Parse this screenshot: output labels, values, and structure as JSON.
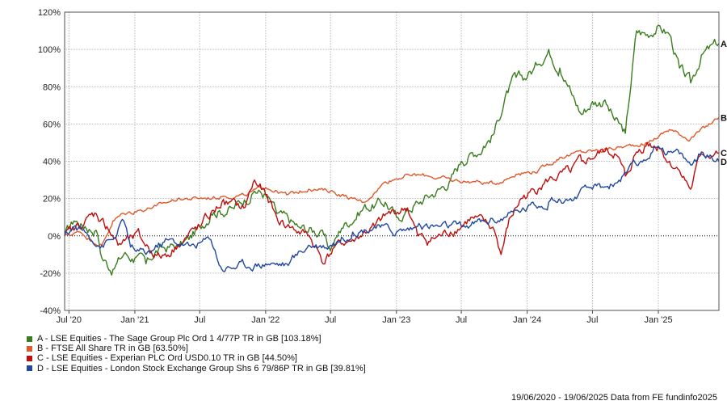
{
  "chart_data": {
    "type": "line",
    "x_ticks": [
      "Jul '20",
      "Jan '21",
      "Jul",
      "Jan '22",
      "Jul",
      "Jan '23",
      "Jul",
      "Jan '24",
      "Jul",
      "Jan '25"
    ],
    "x_tick_dates": [
      "2020-07-01",
      "2021-01-01",
      "2021-07-01",
      "2022-01-01",
      "2022-07-01",
      "2023-01-01",
      "2023-07-01",
      "2024-01-01",
      "2024-07-01",
      "2025-01-01"
    ],
    "xlim": [
      "2020-06-19",
      "2025-06-19"
    ],
    "ylim": [
      -40,
      120
    ],
    "y_ticks": [
      "-40%",
      "-20%",
      "0%",
      "20%",
      "40%",
      "60%",
      "80%",
      "100%",
      "120%"
    ],
    "y_tick_values": [
      -40,
      -20,
      0,
      20,
      40,
      60,
      80,
      100,
      120
    ],
    "grid": true,
    "legend_position": "bottom-left",
    "series": [
      {
        "name": "A - LSE Equities - The Sage Group Plc Ord 1 4/77P TR in GB [103.18%]",
        "end_label": "A",
        "color": "#3a7d1e",
        "points": [
          [
            "2020-06-19",
            0
          ],
          [
            "2020-07-15",
            8
          ],
          [
            "2020-08-15",
            5
          ],
          [
            "2020-09-15",
            3
          ],
          [
            "2020-10-01",
            -12
          ],
          [
            "2020-11-01",
            -18
          ],
          [
            "2020-12-01",
            -10
          ],
          [
            "2021-01-01",
            -12
          ],
          [
            "2021-02-01",
            -15
          ],
          [
            "2021-03-01",
            -8
          ],
          [
            "2021-05-01",
            -5
          ],
          [
            "2021-06-01",
            -2
          ],
          [
            "2021-07-01",
            5
          ],
          [
            "2021-08-01",
            12
          ],
          [
            "2021-10-01",
            15
          ],
          [
            "2021-12-01",
            24
          ],
          [
            "2022-01-01",
            22
          ],
          [
            "2022-02-01",
            12
          ],
          [
            "2022-04-01",
            5
          ],
          [
            "2022-06-01",
            2
          ],
          [
            "2022-07-01",
            -8
          ],
          [
            "2022-08-01",
            4
          ],
          [
            "2022-10-01",
            15
          ],
          [
            "2022-12-01",
            18
          ],
          [
            "2023-01-01",
            10
          ],
          [
            "2023-03-01",
            18
          ],
          [
            "2023-05-01",
            25
          ],
          [
            "2023-06-01",
            30
          ],
          [
            "2023-07-01",
            40
          ],
          [
            "2023-09-01",
            48
          ],
          [
            "2023-10-01",
            55
          ],
          [
            "2023-11-01",
            75
          ],
          [
            "2023-12-01",
            85
          ],
          [
            "2024-01-01",
            85
          ],
          [
            "2024-02-01",
            92
          ],
          [
            "2024-03-01",
            100
          ],
          [
            "2024-04-01",
            90
          ],
          [
            "2024-05-01",
            78
          ],
          [
            "2024-06-01",
            65
          ],
          [
            "2024-07-01",
            72
          ],
          [
            "2024-08-01",
            72
          ],
          [
            "2024-09-01",
            62
          ],
          [
            "2024-10-01",
            55
          ],
          [
            "2024-11-01",
            110
          ],
          [
            "2024-12-01",
            108
          ],
          [
            "2025-01-01",
            113
          ],
          [
            "2025-02-01",
            108
          ],
          [
            "2025-03-01",
            90
          ],
          [
            "2025-04-01",
            82
          ],
          [
            "2025-05-01",
            97
          ],
          [
            "2025-06-19",
            103.18
          ]
        ]
      },
      {
        "name": "B - FTSE All Share TR in GB [63.50%]",
        "end_label": "B",
        "color": "#e0592a",
        "points": [
          [
            "2020-06-19",
            0
          ],
          [
            "2020-08-01",
            2
          ],
          [
            "2020-09-01",
            -2
          ],
          [
            "2020-10-01",
            -5
          ],
          [
            "2020-11-01",
            8
          ],
          [
            "2020-12-01",
            12
          ],
          [
            "2021-01-01",
            13
          ],
          [
            "2021-03-01",
            16
          ],
          [
            "2021-05-01",
            20
          ],
          [
            "2021-07-01",
            20
          ],
          [
            "2021-09-01",
            21
          ],
          [
            "2021-11-01",
            22
          ],
          [
            "2022-01-01",
            26
          ],
          [
            "2022-03-01",
            22
          ],
          [
            "2022-05-01",
            25
          ],
          [
            "2022-07-01",
            24
          ],
          [
            "2022-09-01",
            20
          ],
          [
            "2022-10-01",
            18
          ],
          [
            "2022-12-01",
            29
          ],
          [
            "2023-02-01",
            33
          ],
          [
            "2023-04-01",
            32
          ],
          [
            "2023-06-01",
            30
          ],
          [
            "2023-08-01",
            29
          ],
          [
            "2023-10-01",
            28
          ],
          [
            "2023-12-01",
            33
          ],
          [
            "2024-02-01",
            35
          ],
          [
            "2024-04-01",
            42
          ],
          [
            "2024-06-01",
            45
          ],
          [
            "2024-08-01",
            46
          ],
          [
            "2024-10-01",
            48
          ],
          [
            "2024-12-01",
            50
          ],
          [
            "2025-02-01",
            57
          ],
          [
            "2025-04-01",
            52
          ],
          [
            "2025-06-19",
            63.5
          ]
        ]
      },
      {
        "name": "C - LSE Equities - Experian PLC Ord USD0.10 TR in GB [44.50%]",
        "end_label": "C",
        "color": "#c00d0d",
        "points": [
          [
            "2020-06-19",
            0
          ],
          [
            "2020-07-15",
            3
          ],
          [
            "2020-08-15",
            8
          ],
          [
            "2020-09-15",
            12
          ],
          [
            "2020-10-15",
            5
          ],
          [
            "2020-11-15",
            -5
          ],
          [
            "2020-12-15",
            -2
          ],
          [
            "2021-01-15",
            0
          ],
          [
            "2021-02-15",
            -8
          ],
          [
            "2021-03-15",
            -12
          ],
          [
            "2021-05-01",
            -5
          ],
          [
            "2021-07-01",
            5
          ],
          [
            "2021-09-01",
            18
          ],
          [
            "2021-11-01",
            15
          ],
          [
            "2021-12-01",
            30
          ],
          [
            "2022-01-01",
            22
          ],
          [
            "2022-02-01",
            10
          ],
          [
            "2022-03-01",
            5
          ],
          [
            "2022-05-01",
            0
          ],
          [
            "2022-06-15",
            -15
          ],
          [
            "2022-07-15",
            -5
          ],
          [
            "2022-09-01",
            -2
          ],
          [
            "2022-11-01",
            5
          ],
          [
            "2022-12-15",
            12
          ],
          [
            "2023-02-01",
            15
          ],
          [
            "2023-03-01",
            0
          ],
          [
            "2023-04-01",
            -3
          ],
          [
            "2023-06-01",
            2
          ],
          [
            "2023-08-01",
            10
          ],
          [
            "2023-10-01",
            3
          ],
          [
            "2023-10-20",
            -10
          ],
          [
            "2023-11-15",
            10
          ],
          [
            "2023-12-15",
            20
          ],
          [
            "2024-02-01",
            25
          ],
          [
            "2024-03-01",
            30
          ],
          [
            "2024-05-01",
            34
          ],
          [
            "2024-06-01",
            40
          ],
          [
            "2024-08-01",
            45
          ],
          [
            "2024-09-01",
            44
          ],
          [
            "2024-10-01",
            32
          ],
          [
            "2024-11-01",
            45
          ],
          [
            "2024-12-01",
            50
          ],
          [
            "2025-01-01",
            48
          ],
          [
            "2025-02-01",
            40
          ],
          [
            "2025-03-01",
            35
          ],
          [
            "2025-04-01",
            25
          ],
          [
            "2025-05-01",
            44
          ],
          [
            "2025-06-19",
            44.5
          ]
        ]
      },
      {
        "name": "D - LSE Equities - London Stock Exchange Group Shs 6 79/86P TR in GB [39.81%]",
        "end_label": "D",
        "color": "#1f47a0",
        "points": [
          [
            "2020-06-19",
            0
          ],
          [
            "2020-07-15",
            5
          ],
          [
            "2020-08-15",
            2
          ],
          [
            "2020-10-01",
            -5
          ],
          [
            "2020-11-01",
            -2
          ],
          [
            "2020-12-01",
            8
          ],
          [
            "2020-12-20",
            -6
          ],
          [
            "2021-02-01",
            -10
          ],
          [
            "2021-04-01",
            -2
          ],
          [
            "2021-06-01",
            -5
          ],
          [
            "2021-08-01",
            -2
          ],
          [
            "2021-09-01",
            -18
          ],
          [
            "2021-11-01",
            -15
          ],
          [
            "2022-01-01",
            -15
          ],
          [
            "2022-03-01",
            -15
          ],
          [
            "2022-05-01",
            -5
          ],
          [
            "2022-07-01",
            -5
          ],
          [
            "2022-09-01",
            2
          ],
          [
            "2022-11-01",
            5
          ],
          [
            "2023-01-01",
            2
          ],
          [
            "2023-03-01",
            5
          ],
          [
            "2023-05-01",
            5
          ],
          [
            "2023-07-01",
            5
          ],
          [
            "2023-09-01",
            8
          ],
          [
            "2023-11-01",
            10
          ],
          [
            "2024-01-01",
            15
          ],
          [
            "2024-03-01",
            18
          ],
          [
            "2024-05-01",
            20
          ],
          [
            "2024-07-01",
            25
          ],
          [
            "2024-09-01",
            28
          ],
          [
            "2024-11-01",
            38
          ],
          [
            "2025-01-01",
            48
          ],
          [
            "2025-02-01",
            45
          ],
          [
            "2025-03-01",
            44
          ],
          [
            "2025-04-01",
            38
          ],
          [
            "2025-05-01",
            45
          ],
          [
            "2025-06-19",
            39.81
          ]
        ]
      }
    ]
  },
  "footer": {
    "text": "19/06/2020 - 19/06/2025 Data from FE fundinfo2025"
  }
}
